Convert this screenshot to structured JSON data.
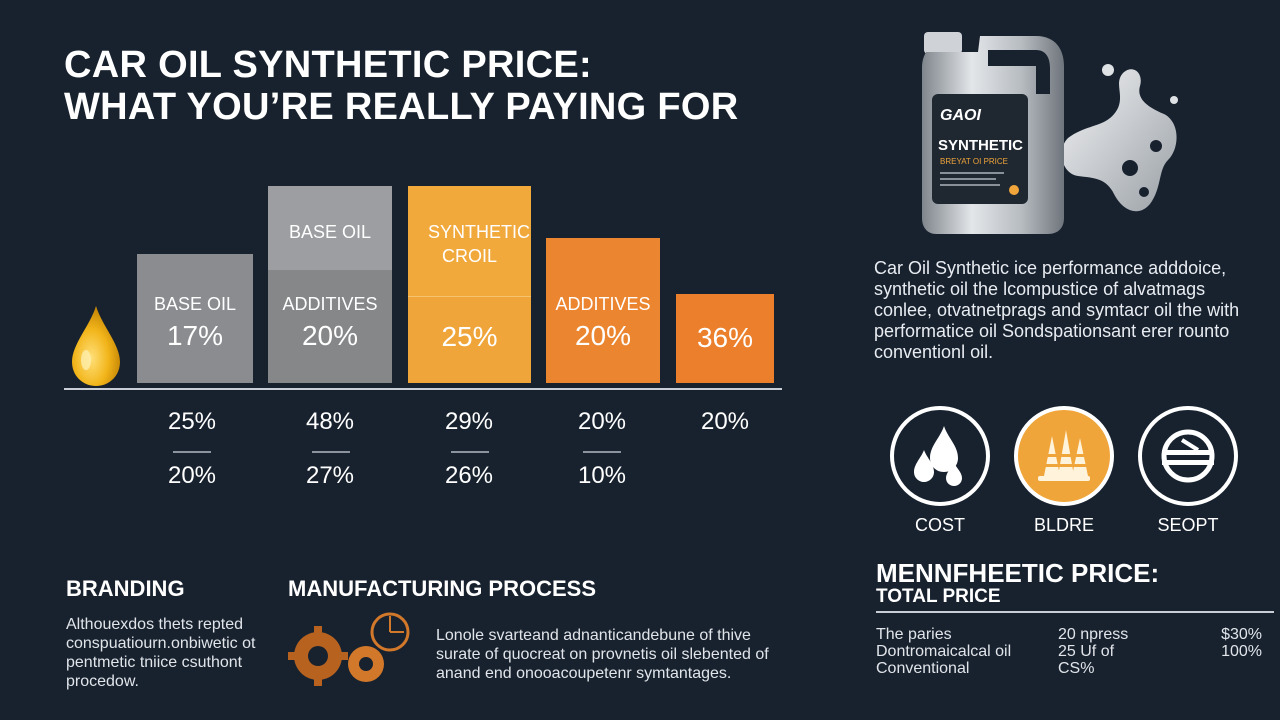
{
  "header": {
    "title_line1": "CAR OIL SYNTHETIC PRICE:",
    "title_line2": "WHAT YOU’RE REALLY PAYING FOR"
  },
  "chart_data": {
    "type": "bar",
    "bars": [
      {
        "segments": [
          {
            "label": "BASE OIL",
            "value": "17%",
            "color": "#8a8c8f"
          }
        ]
      },
      {
        "segments": [
          {
            "label": "BASE OIL",
            "value": "",
            "color": "#9c9ea1"
          },
          {
            "label": "ADDITIVES",
            "value": "20%",
            "color": "#858789"
          }
        ]
      },
      {
        "segments": [
          {
            "label": "SYNTHETIC CROIL",
            "value": "",
            "color": "#f2a93c"
          },
          {
            "label": "",
            "value": "25%",
            "color": "#f0a53a"
          }
        ]
      },
      {
        "segments": [
          {
            "label": "ADDITIVES",
            "value": "20%",
            "color": "#ec8530"
          }
        ]
      },
      {
        "segments": [
          {
            "label": "",
            "value": "36%",
            "color": "#ec7f2c"
          }
        ]
      }
    ],
    "row1": [
      "25%",
      "48%",
      "29%",
      "20%",
      "20%"
    ],
    "row2": [
      "20%",
      "27%",
      "26%",
      "10%"
    ]
  },
  "product": {
    "brand": "GAOI",
    "name": "SYNTHETIC",
    "tagline": "BREYAT OI PRICE"
  },
  "description": {
    "lines": [
      "Car Oil Synthetic  ice performance adddoice,",
      "synthetic oil the lcompustice of alvatmags",
      "conlee, otvatnetprags and symtacr oil the with",
      "performatice oil Sondspationsant erer rounto",
      "conventionl oil."
    ]
  },
  "icons": [
    {
      "name": "drops-icon",
      "label": "COST"
    },
    {
      "name": "cones-icon",
      "label": "BLDRE"
    },
    {
      "name": "gauge-icon",
      "label": "SEOPT"
    }
  ],
  "branding": {
    "heading": "BRANDING",
    "lines": [
      "Althouexdos thets repted",
      "conspuatiourn.onbiwetic ot",
      "pentmetic tniice csuthont",
      "procedow."
    ]
  },
  "manufacturing": {
    "heading": "MANUFACTURING PROCESS",
    "lines": [
      "Lonole svarteand adnanticandebune of thive",
      "surate of quocreat on provnetis oil slebented of",
      "anand end onooacoupetenr symtantages."
    ]
  },
  "total": {
    "heading": "MENNFHEETIC PRICE:",
    "subheading": "TOTAL PRICE",
    "col1": [
      "The paries",
      "Dontromaicalcal oil",
      "Conventional"
    ],
    "col2": [
      "20 npress",
      "25 Uf of",
      "CS%"
    ],
    "col3": [
      "$30%",
      "100%"
    ]
  }
}
